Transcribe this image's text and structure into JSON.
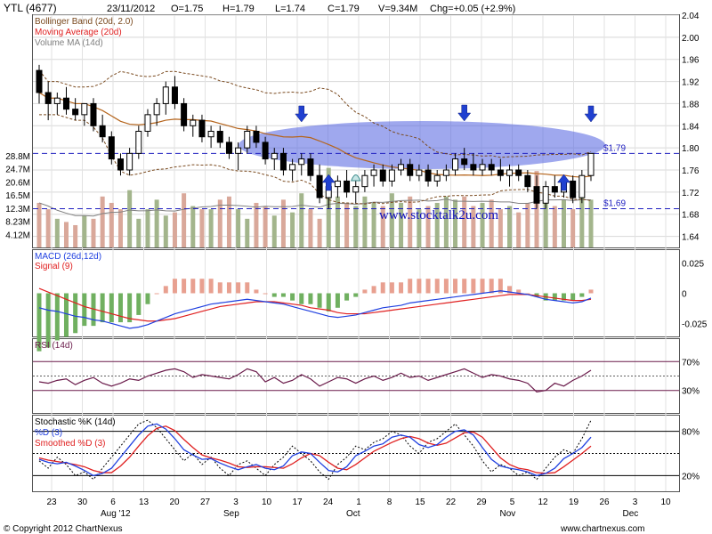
{
  "header": {
    "symbol": "YTL (4677)",
    "date": "23/11/2012",
    "open": "O=1.75",
    "high": "H=1.79",
    "low": "L=1.74",
    "close": "C=1.79",
    "volume": "V=9.34M",
    "change": "Chg=+0.05 (+2.9%)"
  },
  "colors": {
    "up": "#000000",
    "bollinger": "#7a4a1f",
    "ma": "#b5651d",
    "volume_up": "#a3b58c",
    "volume_down": "#d9a89a",
    "volume_ma": "#808080",
    "macd": "#2040e0",
    "signal": "#e02020",
    "hist_pos": "#e8a090",
    "hist_neg": "#70b060",
    "rsi": "#6a1a4a",
    "stoch_k": "#000000",
    "stoch_d": "#2040e0",
    "stoch_sd": "#e02020",
    "level_line": "#2020c0",
    "highlight": "#5060e0",
    "arrow": "#2040d0",
    "watermark": "#1010c0"
  },
  "chart_data": [
    {
      "type": "candlestick",
      "panel": "price",
      "legend": [
        "Bollinger Band (20d, 2.0)",
        "Moving Average (20d)",
        "Volume MA (14d)"
      ],
      "price_ticks": [
        "2.04",
        "2.00",
        "1.96",
        "1.92",
        "1.88",
        "1.84",
        "1.80",
        "1.76",
        "1.72",
        "1.68",
        "1.64"
      ],
      "ylim": [
        1.62,
        2.04
      ],
      "levels": [
        {
          "value": 1.79,
          "label": "$1.79"
        },
        {
          "value": 1.69,
          "label": "$1.69"
        }
      ],
      "volume_ticks": [
        "28.8M",
        "24.7M",
        "20.6M",
        "16.5M",
        "12.3M",
        "8.23M",
        "4.12M"
      ],
      "volume_max": 33,
      "watermark": "www.stocktalk2u.com",
      "x_tick_labels": [
        "23",
        "30",
        "6",
        "13",
        "20",
        "27",
        "3",
        "10",
        "17",
        "24",
        "1",
        "8",
        "15",
        "22",
        "29",
        "5",
        "12",
        "19",
        "26",
        "3",
        "10"
      ],
      "month_labels": [
        "Aug '12",
        "Sep",
        "Oct",
        "Nov",
        "Dec"
      ],
      "candles": [
        [
          1.94,
          1.95,
          1.88,
          1.9
        ],
        [
          1.9,
          1.92,
          1.85,
          1.88
        ],
        [
          1.88,
          1.9,
          1.86,
          1.89
        ],
        [
          1.89,
          1.91,
          1.86,
          1.87
        ],
        [
          1.87,
          1.89,
          1.85,
          1.86
        ],
        [
          1.86,
          1.88,
          1.84,
          1.88
        ],
        [
          1.88,
          1.89,
          1.83,
          1.84
        ],
        [
          1.84,
          1.86,
          1.81,
          1.82
        ],
        [
          1.82,
          1.83,
          1.77,
          1.78
        ],
        [
          1.78,
          1.79,
          1.75,
          1.76
        ],
        [
          1.76,
          1.8,
          1.75,
          1.79
        ],
        [
          1.79,
          1.84,
          1.78,
          1.83
        ],
        [
          1.83,
          1.87,
          1.82,
          1.86
        ],
        [
          1.86,
          1.89,
          1.84,
          1.88
        ],
        [
          1.88,
          1.92,
          1.86,
          1.91
        ],
        [
          1.91,
          1.93,
          1.87,
          1.88
        ],
        [
          1.88,
          1.89,
          1.83,
          1.84
        ],
        [
          1.84,
          1.86,
          1.82,
          1.85
        ],
        [
          1.85,
          1.86,
          1.81,
          1.82
        ],
        [
          1.82,
          1.84,
          1.8,
          1.83
        ],
        [
          1.83,
          1.84,
          1.8,
          1.81
        ],
        [
          1.81,
          1.82,
          1.78,
          1.79
        ],
        [
          1.79,
          1.81,
          1.76,
          1.8
        ],
        [
          1.8,
          1.84,
          1.79,
          1.83
        ],
        [
          1.83,
          1.84,
          1.8,
          1.81
        ],
        [
          1.81,
          1.82,
          1.77,
          1.78
        ],
        [
          1.78,
          1.8,
          1.76,
          1.79
        ],
        [
          1.79,
          1.8,
          1.75,
          1.76
        ],
        [
          1.76,
          1.78,
          1.74,
          1.77
        ],
        [
          1.77,
          1.79,
          1.75,
          1.78
        ],
        [
          1.78,
          1.79,
          1.74,
          1.75
        ],
        [
          1.75,
          1.77,
          1.7,
          1.71
        ],
        [
          1.71,
          1.74,
          1.69,
          1.73
        ],
        [
          1.73,
          1.75,
          1.71,
          1.74
        ],
        [
          1.74,
          1.76,
          1.71,
          1.72
        ],
        [
          1.72,
          1.74,
          1.7,
          1.73
        ],
        [
          1.73,
          1.76,
          1.72,
          1.75
        ],
        [
          1.75,
          1.77,
          1.73,
          1.76
        ],
        [
          1.76,
          1.77,
          1.73,
          1.74
        ],
        [
          1.74,
          1.77,
          1.73,
          1.76
        ],
        [
          1.76,
          1.78,
          1.75,
          1.77
        ],
        [
          1.77,
          1.78,
          1.74,
          1.75
        ],
        [
          1.75,
          1.77,
          1.74,
          1.76
        ],
        [
          1.76,
          1.77,
          1.73,
          1.74
        ],
        [
          1.74,
          1.76,
          1.73,
          1.75
        ],
        [
          1.75,
          1.77,
          1.74,
          1.76
        ],
        [
          1.76,
          1.79,
          1.75,
          1.78
        ],
        [
          1.78,
          1.8,
          1.76,
          1.77
        ],
        [
          1.77,
          1.79,
          1.75,
          1.76
        ],
        [
          1.76,
          1.78,
          1.75,
          1.77
        ],
        [
          1.77,
          1.78,
          1.75,
          1.76
        ],
        [
          1.76,
          1.78,
          1.74,
          1.75
        ],
        [
          1.75,
          1.77,
          1.73,
          1.76
        ],
        [
          1.76,
          1.77,
          1.74,
          1.75
        ],
        [
          1.75,
          1.76,
          1.72,
          1.73
        ],
        [
          1.73,
          1.75,
          1.69,
          1.7
        ],
        [
          1.7,
          1.74,
          1.69,
          1.73
        ],
        [
          1.73,
          1.75,
          1.71,
          1.72
        ],
        [
          1.72,
          1.75,
          1.71,
          1.74
        ],
        [
          1.74,
          1.75,
          1.7,
          1.71
        ],
        [
          1.71,
          1.76,
          1.7,
          1.75
        ],
        [
          1.75,
          1.79,
          1.74,
          1.79
        ]
      ],
      "volumes": [
        14,
        12,
        9,
        8,
        7,
        10,
        9,
        16,
        14,
        12,
        18,
        9,
        12,
        15,
        10,
        11,
        17,
        13,
        12,
        12,
        15,
        16,
        12,
        9,
        14,
        13,
        10,
        15,
        11,
        17,
        12,
        9,
        25,
        16,
        14,
        13,
        16,
        14,
        13,
        17,
        14,
        16,
        12,
        13,
        14,
        16,
        15,
        16,
        13,
        14,
        15,
        12,
        13,
        11,
        14,
        24,
        19,
        13,
        15,
        12,
        19,
        15
      ]
    },
    {
      "type": "line",
      "panel": "macd",
      "series_labels": [
        "MACD (26d,12d)",
        "Signal (9)"
      ],
      "y_ticks": [
        "0.025",
        "0",
        "-0.025"
      ],
      "ylim": [
        -0.035,
        0.035
      ],
      "macd": [
        -0.012,
        -0.014,
        -0.015,
        -0.017,
        -0.019,
        -0.02,
        -0.022,
        -0.023,
        -0.025,
        -0.027,
        -0.029,
        -0.028,
        -0.026,
        -0.023,
        -0.02,
        -0.017,
        -0.015,
        -0.013,
        -0.011,
        -0.009,
        -0.008,
        -0.007,
        -0.006,
        -0.005,
        -0.006,
        -0.007,
        -0.008,
        -0.009,
        -0.011,
        -0.013,
        -0.015,
        -0.017,
        -0.019,
        -0.02,
        -0.019,
        -0.018,
        -0.016,
        -0.014,
        -0.012,
        -0.011,
        -0.01,
        -0.008,
        -0.007,
        -0.006,
        -0.005,
        -0.004,
        -0.003,
        -0.002,
        -0.001,
        0.0,
        0.001,
        0.002,
        0.001,
        0.0,
        -0.001,
        -0.003,
        -0.005,
        -0.006,
        -0.007,
        -0.008,
        -0.007,
        -0.004
      ],
      "signal": [
        0.004,
        0.001,
        -0.002,
        -0.005,
        -0.008,
        -0.011,
        -0.013,
        -0.015,
        -0.017,
        -0.019,
        -0.021,
        -0.022,
        -0.023,
        -0.023,
        -0.022,
        -0.021,
        -0.019,
        -0.017,
        -0.015,
        -0.013,
        -0.011,
        -0.01,
        -0.009,
        -0.008,
        -0.007,
        -0.007,
        -0.007,
        -0.008,
        -0.009,
        -0.01,
        -0.012,
        -0.013,
        -0.014,
        -0.016,
        -0.017,
        -0.017,
        -0.017,
        -0.016,
        -0.015,
        -0.014,
        -0.013,
        -0.012,
        -0.011,
        -0.01,
        -0.009,
        -0.008,
        -0.007,
        -0.006,
        -0.005,
        -0.004,
        -0.003,
        -0.002,
        -0.001,
        -0.001,
        -0.001,
        -0.002,
        -0.003,
        -0.004,
        -0.005,
        -0.006,
        -0.006,
        -0.005
      ]
    },
    {
      "type": "line",
      "panel": "rsi",
      "series_labels": [
        "RSI (14d)"
      ],
      "y_ticks": [
        "70%",
        "30%"
      ],
      "ylim": [
        0,
        100
      ],
      "reference_levels": [
        70,
        50,
        30
      ],
      "rsi": [
        42,
        40,
        44,
        46,
        38,
        44,
        48,
        40,
        36,
        40,
        46,
        44,
        50,
        54,
        58,
        60,
        56,
        48,
        52,
        50,
        48,
        46,
        52,
        60,
        56,
        42,
        48,
        40,
        44,
        52,
        46,
        36,
        42,
        48,
        46,
        40,
        46,
        50,
        44,
        48,
        54,
        48,
        50,
        44,
        48,
        52,
        56,
        60,
        54,
        48,
        52,
        50,
        46,
        44,
        40,
        28,
        30,
        40,
        36,
        44,
        50,
        58
      ]
    },
    {
      "type": "line",
      "panel": "stochastic",
      "series_labels": [
        "Stochastic %K (14d)",
        "%D (3)",
        "Smoothed %D (3)"
      ],
      "y_ticks": [
        "80%",
        "20%"
      ],
      "ylim": [
        0,
        100
      ],
      "reference_levels": [
        80,
        50,
        20
      ],
      "k": [
        40,
        30,
        45,
        35,
        20,
        25,
        15,
        30,
        45,
        60,
        75,
        90,
        95,
        85,
        70,
        55,
        40,
        50,
        35,
        45,
        30,
        20,
        35,
        40,
        30,
        20,
        35,
        45,
        60,
        50,
        40,
        25,
        15,
        35,
        45,
        60,
        55,
        65,
        70,
        80,
        75,
        60,
        50,
        65,
        70,
        80,
        90,
        75,
        60,
        40,
        25,
        35,
        30,
        20,
        25,
        15,
        30,
        45,
        55,
        50,
        70,
        95
      ],
      "d": [
        42,
        38,
        36,
        38,
        33,
        27,
        20,
        23,
        30,
        45,
        60,
        75,
        87,
        90,
        83,
        70,
        55,
        48,
        42,
        43,
        37,
        32,
        28,
        32,
        35,
        30,
        28,
        33,
        47,
        52,
        50,
        38,
        27,
        25,
        32,
        47,
        53,
        60,
        63,
        72,
        75,
        72,
        62,
        58,
        62,
        72,
        80,
        82,
        75,
        58,
        42,
        33,
        30,
        28,
        25,
        20,
        23,
        30,
        43,
        50,
        58,
        72
      ],
      "smoothed_d": [
        44,
        41,
        39,
        37,
        35,
        32,
        27,
        24,
        24,
        33,
        45,
        60,
        74,
        84,
        87,
        81,
        69,
        58,
        48,
        44,
        41,
        37,
        32,
        31,
        32,
        32,
        31,
        30,
        36,
        44,
        50,
        47,
        38,
        30,
        28,
        35,
        44,
        53,
        59,
        65,
        70,
        73,
        70,
        64,
        61,
        64,
        71,
        78,
        79,
        72,
        58,
        44,
        35,
        30,
        28,
        24,
        23,
        24,
        32,
        41,
        50,
        60
      ]
    }
  ],
  "footer": {
    "copyright": "© Copyright 2012 ChartNexus",
    "brand": "www.chartnexus.com"
  }
}
